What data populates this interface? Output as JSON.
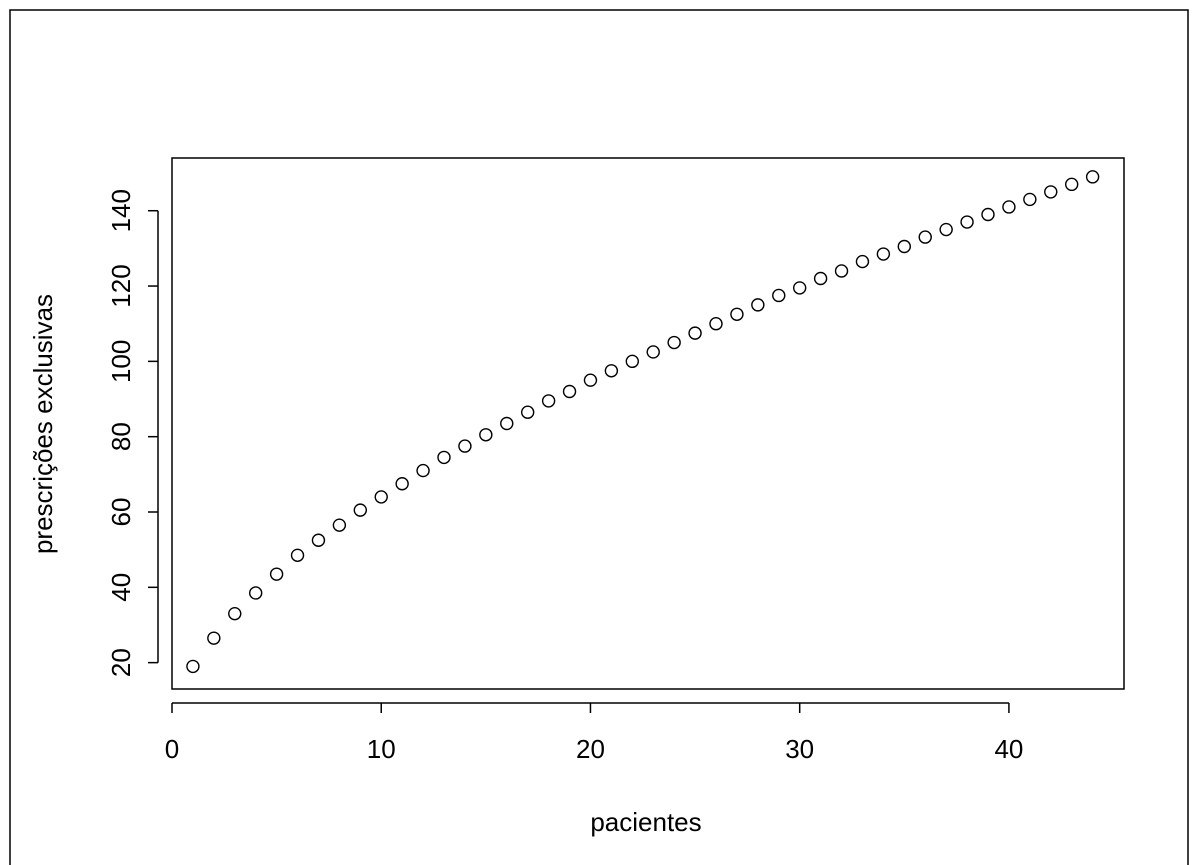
{
  "chart_data": {
    "type": "scatter",
    "title": "",
    "xlabel": "pacientes",
    "ylabel": "prescrições exclusivas",
    "xlim": [
      0,
      45.5
    ],
    "ylim": [
      13,
      154
    ],
    "x_ticks": [
      0,
      10,
      20,
      30,
      40
    ],
    "x_tick_labels": [
      "0",
      "10",
      "20",
      "30",
      "40"
    ],
    "y_ticks": [
      20,
      40,
      60,
      80,
      100,
      120,
      140
    ],
    "y_tick_labels": [
      "20",
      "40",
      "60",
      "80",
      "100",
      "120",
      "140"
    ],
    "grid": false,
    "legend": "none",
    "marker": "open-circle",
    "color": "#000000",
    "x": [
      1,
      2,
      3,
      4,
      5,
      6,
      7,
      8,
      9,
      10,
      11,
      12,
      13,
      14,
      15,
      16,
      17,
      18,
      19,
      20,
      21,
      22,
      23,
      24,
      25,
      26,
      27,
      28,
      29,
      30,
      31,
      32,
      33,
      34,
      35,
      36,
      37,
      38,
      39,
      40,
      41,
      42,
      43,
      44
    ],
    "y": [
      19,
      26.5,
      33,
      38.5,
      43.5,
      48.5,
      52.5,
      56.5,
      60.5,
      64,
      67.5,
      71,
      74.5,
      77.5,
      80.5,
      83.5,
      86.5,
      89.5,
      92,
      95,
      97.5,
      100,
      102.5,
      105,
      107.5,
      110,
      112.5,
      115,
      117.5,
      119.5,
      122,
      124,
      126.5,
      128.5,
      130.5,
      133,
      135,
      137,
      139,
      141,
      143,
      145,
      147,
      149
    ]
  }
}
